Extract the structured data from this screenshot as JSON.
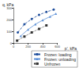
{
  "chart_data": {
    "type": "line",
    "x_label": "p', kPa",
    "y_label": "q, kPa",
    "xlim": [
      0,
      600
    ],
    "xticks": [
      0,
      200,
      400,
      600
    ],
    "ylim": [
      0,
      300
    ],
    "yticks": [
      0,
      100,
      200,
      300
    ],
    "grid": false,
    "legend": "lower right",
    "series": [
      {
        "name": "Frozen: loading",
        "color": "#1f4e9c",
        "marker": "circle",
        "line_style": "dashed",
        "x": [
          60,
          150,
          250,
          350,
          450,
          550
        ],
        "values": [
          90,
          160,
          205,
          240,
          265,
          285
        ]
      },
      {
        "name": "Frozen: unloading",
        "color": "#5b8fd6",
        "marker": "triangle",
        "line_style": "solid",
        "x": [
          100,
          200,
          300,
          400,
          500,
          580
        ],
        "values": [
          60,
          115,
          160,
          195,
          225,
          250
        ]
      },
      {
        "name": "Unfrozen",
        "color": "#333333",
        "marker": "rect",
        "line_style": "dotted",
        "x": [
          50,
          150,
          250,
          350,
          450
        ],
        "values": [
          20,
          55,
          90,
          120,
          150
        ]
      }
    ]
  }
}
